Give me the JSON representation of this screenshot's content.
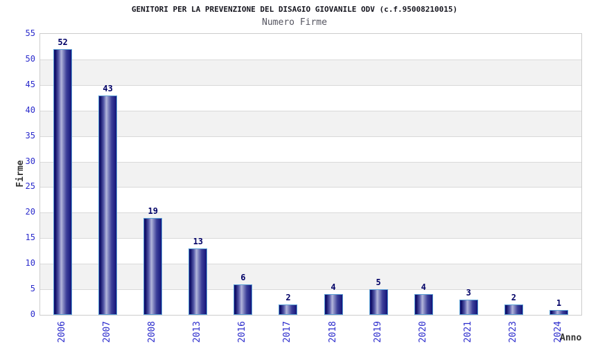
{
  "colors": {
    "bar_dark": "#14147a",
    "bar_highlight": "#b4b7db",
    "bar_border": "#5a9fd4",
    "tick_text": "#2a2acc",
    "value_label_text": "#000066",
    "title_text": "#15151e",
    "subtitle_text": "#555560",
    "axis_label_text": "#333333",
    "grid_line": "#d9d9d9",
    "band_gray": "#f2f2f2",
    "plot_border": "#cccccc"
  },
  "chart_data": {
    "type": "bar",
    "title": "GENITORI PER LA PREVENZIONE DEL DISAGIO GIOVANILE ODV (c.f.95008210015)",
    "subtitle": "Numero Firme",
    "xlabel": "Anno",
    "ylabel": "Firme",
    "categories": [
      "2006",
      "2007",
      "2008",
      "2013",
      "2016",
      "2017",
      "2018",
      "2019",
      "2020",
      "2021",
      "2023",
      "2024"
    ],
    "values": [
      52,
      43,
      19,
      13,
      6,
      2,
      4,
      5,
      4,
      3,
      2,
      1
    ],
    "ylim": [
      0,
      55
    ],
    "ytick_step": 5,
    "yticks": [
      0,
      5,
      10,
      15,
      20,
      25,
      30,
      35,
      40,
      45,
      50,
      55
    ],
    "grid": true,
    "background_bands": "alternating white / light-gray every 5 units",
    "legend": "none"
  }
}
